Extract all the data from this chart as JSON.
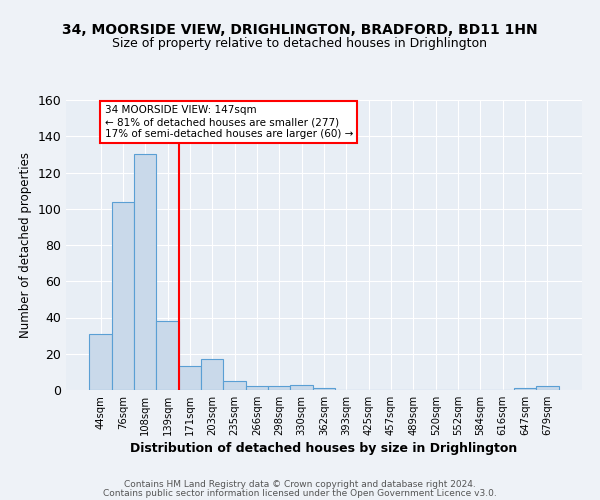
{
  "title1": "34, MOORSIDE VIEW, DRIGHLINGTON, BRADFORD, BD11 1HN",
  "title2": "Size of property relative to detached houses in Drighlington",
  "xlabel": "Distribution of detached houses by size in Drighlington",
  "ylabel": "Number of detached properties",
  "bin_labels": [
    "44sqm",
    "76sqm",
    "108sqm",
    "139sqm",
    "171sqm",
    "203sqm",
    "235sqm",
    "266sqm",
    "298sqm",
    "330sqm",
    "362sqm",
    "393sqm",
    "425sqm",
    "457sqm",
    "489sqm",
    "520sqm",
    "552sqm",
    "584sqm",
    "616sqm",
    "647sqm",
    "679sqm"
  ],
  "bar_values": [
    31,
    104,
    130,
    38,
    13,
    17,
    5,
    2,
    2,
    3,
    1,
    0,
    0,
    0,
    0,
    0,
    0,
    0,
    0,
    1,
    2
  ],
  "bar_color": "#c9d9ea",
  "bar_edge_color": "#5a9fd4",
  "vline_color": "red",
  "vline_pos": 3.5,
  "annotation_text": "34 MOORSIDE VIEW: 147sqm\n← 81% of detached houses are smaller (277)\n17% of semi-detached houses are larger (60) →",
  "annotation_box_color": "white",
  "annotation_box_edge": "red",
  "ylim": [
    0,
    160
  ],
  "yticks": [
    0,
    20,
    40,
    60,
    80,
    100,
    120,
    140,
    160
  ],
  "footer1": "Contains HM Land Registry data © Crown copyright and database right 2024.",
  "footer2": "Contains public sector information licensed under the Open Government Licence v3.0.",
  "bg_color": "#eef2f7",
  "plot_bg_color": "#e8eef5"
}
